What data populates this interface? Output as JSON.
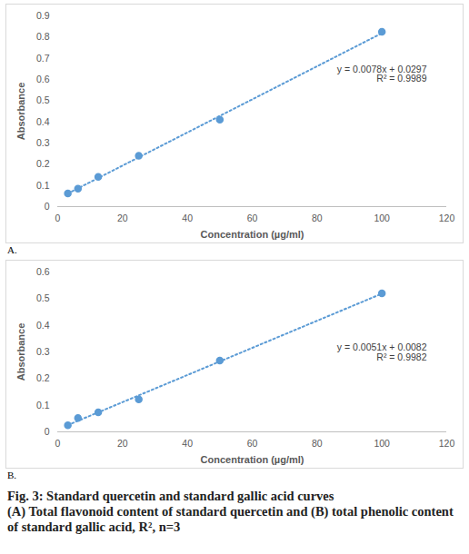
{
  "chart_data": [
    {
      "type": "scatter",
      "panel_label": "A.",
      "x_label": "Concentration (µg/ml)",
      "y_label": "Absorbance",
      "x": [
        3.125,
        6.25,
        12.5,
        25,
        50,
        100
      ],
      "values": [
        0.062,
        0.085,
        0.14,
        0.24,
        0.41,
        0.825
      ],
      "color": "#5b9bd5",
      "marker": "circle",
      "line_style": "dotted",
      "annotations": [
        "y = 0.0078x + 0.0297",
        "R² = 0.9989"
      ],
      "xlim": [
        0,
        120
      ],
      "xticks": [
        0,
        20,
        40,
        60,
        80,
        100,
        120
      ],
      "ylim": [
        0,
        0.9
      ],
      "yticks": [
        0,
        0.1,
        0.2,
        0.3,
        0.4,
        0.5,
        0.6,
        0.7,
        0.8,
        0.9
      ],
      "grid": false
    },
    {
      "type": "scatter",
      "panel_label": "B.",
      "x_label": "Concentration (µg/ml)",
      "y_label": "Absorbance",
      "x": [
        3.125,
        6.25,
        12.5,
        25,
        50,
        100
      ],
      "values": [
        0.025,
        0.052,
        0.073,
        0.122,
        0.268,
        0.52
      ],
      "color": "#5b9bd5",
      "marker": "circle",
      "line_style": "dotted",
      "annotations": [
        "y = 0.0051x + 0.0082",
        "R² = 0.9982"
      ],
      "xlim": [
        0,
        120
      ],
      "xticks": [
        0,
        20,
        40,
        60,
        80,
        100,
        120
      ],
      "ylim": [
        0,
        0.6
      ],
      "yticks": [
        0,
        0.1,
        0.2,
        0.3,
        0.4,
        0.5,
        0.6
      ],
      "grid": false
    }
  ],
  "caption": {
    "title": "Fig. 3: Standard quercetin and standard gallic acid curves",
    "text": "(A) Total flavonoid content of standard quercetin and (B) total phenolic content of standard gallic acid, R², n=3"
  }
}
